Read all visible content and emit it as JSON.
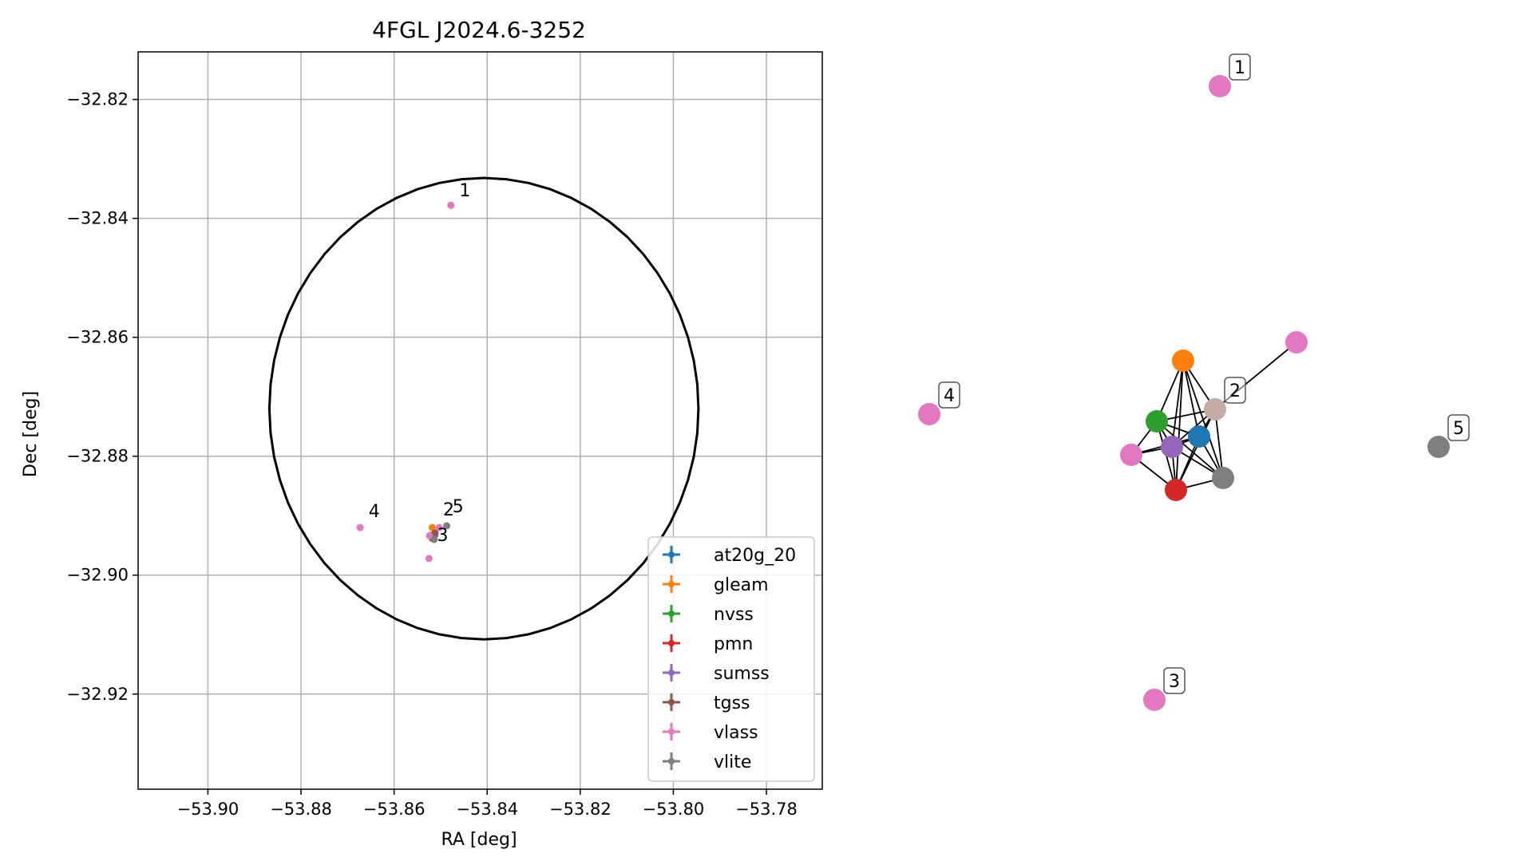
{
  "chart_data": [
    {
      "type": "scatter",
      "title": "4FGL J2024.6-3252",
      "xlabel": "RA [deg]",
      "ylabel": "Dec [deg]",
      "xlim": [
        -53.915,
        -53.768
      ],
      "ylim": [
        -32.936,
        -32.812
      ],
      "xticks": [
        -53.9,
        -53.88,
        -53.86,
        -53.84,
        -53.82,
        -53.8,
        -53.78
      ],
      "xtick_labels": [
        "−53.90",
        "−53.88",
        "−53.86",
        "−53.84",
        "−53.82",
        "−53.80",
        "−53.78"
      ],
      "yticks": [
        -32.82,
        -32.84,
        -32.86,
        -32.88,
        -32.9,
        -32.92
      ],
      "ytick_labels": [
        "−32.82",
        "−32.84",
        "−32.86",
        "−32.88",
        "−32.90",
        "−32.92"
      ],
      "grid": true,
      "legend_position": "lower-right",
      "ellipse": {
        "center_ra": -53.8407,
        "center_dec": -32.872,
        "half_width_ra": 0.0461,
        "half_height_dec": 0.0388
      },
      "series": [
        {
          "name": "at20g_20",
          "color": "#1f77b4",
          "points": [
            {
              "ra": -53.8513,
              "dec": -32.8933
            }
          ]
        },
        {
          "name": "gleam",
          "color": "#ff7f0e",
          "points": [
            {
              "ra": -53.8518,
              "dec": -32.892
            }
          ]
        },
        {
          "name": "nvss",
          "color": "#2ca02c",
          "points": [
            {
              "ra": -53.8522,
              "dec": -32.8933
            }
          ]
        },
        {
          "name": "pmn",
          "color": "#d62728",
          "points": [
            {
              "ra": -53.8518,
              "dec": -32.8938
            }
          ]
        },
        {
          "name": "sumss",
          "color": "#9467bd",
          "points": [
            {
              "ra": -53.852,
              "dec": -32.8934
            }
          ]
        },
        {
          "name": "tgss",
          "color": "#8c564b",
          "points": [
            {
              "ra": -53.8512,
              "dec": -32.8929
            }
          ]
        },
        {
          "name": "vlass",
          "color": "#e377c2",
          "points": [
            {
              "ra": -53.8478,
              "dec": -32.8378
            },
            {
              "ra": -53.8503,
              "dec": -32.892
            },
            {
              "ra": -53.8525,
              "dec": -32.8972
            },
            {
              "ra": -53.8673,
              "dec": -32.892
            },
            {
              "ra": -53.8524,
              "dec": -32.8934
            }
          ]
        },
        {
          "name": "vlite",
          "color": "#7f7f7f",
          "points": [
            {
              "ra": -53.8487,
              "dec": -32.8917
            },
            {
              "ra": -53.8514,
              "dec": -32.894
            }
          ]
        }
      ],
      "annotations": [
        {
          "label": "1",
          "ra": -53.847,
          "dec": -32.8368
        },
        {
          "label": "2",
          "ra": -53.8505,
          "dec": -32.8905
        },
        {
          "label": "3",
          "ra": -53.8518,
          "dec": -32.8948
        },
        {
          "label": "4",
          "ra": -53.8665,
          "dec": -32.8908
        },
        {
          "label": "5",
          "ra": -53.8485,
          "dec": -32.89
        }
      ]
    },
    {
      "type": "network-graph",
      "nodes": [
        {
          "id": "v1",
          "catalog": "vlass",
          "color": "#e377c2",
          "label": "1"
        },
        {
          "id": "v2",
          "catalog": "vlass",
          "color": "#e377c2",
          "label": ""
        },
        {
          "id": "v3",
          "catalog": "vlass",
          "color": "#e377c2",
          "label": "3"
        },
        {
          "id": "v4",
          "catalog": "vlass",
          "color": "#e377c2",
          "label": "4"
        },
        {
          "id": "v5",
          "catalog": "vlass",
          "color": "#e377c2",
          "label": ""
        },
        {
          "id": "g",
          "catalog": "gleam",
          "color": "#ff7f0e",
          "label": ""
        },
        {
          "id": "t",
          "catalog": "tgss",
          "color": "#c4aba5",
          "label": "2"
        },
        {
          "id": "n",
          "catalog": "nvss",
          "color": "#2ca02c",
          "label": ""
        },
        {
          "id": "a",
          "catalog": "at20g_20",
          "color": "#1f77b4",
          "label": ""
        },
        {
          "id": "s",
          "catalog": "sumss",
          "color": "#9467bd",
          "label": ""
        },
        {
          "id": "p",
          "catalog": "pmn",
          "color": "#d62728",
          "label": ""
        },
        {
          "id": "gr",
          "catalog": "vlite",
          "color": "#7f7f7f",
          "label": ""
        },
        {
          "id": "gr5",
          "catalog": "vlite",
          "color": "#7f7f7f",
          "label": "5"
        }
      ],
      "edges": [
        [
          "t",
          "v2"
        ],
        [
          "g",
          "n"
        ],
        [
          "g",
          "a"
        ],
        [
          "g",
          "s"
        ],
        [
          "g",
          "p"
        ],
        [
          "g",
          "t"
        ],
        [
          "g",
          "gr"
        ],
        [
          "t",
          "n"
        ],
        [
          "t",
          "a"
        ],
        [
          "t",
          "s"
        ],
        [
          "t",
          "p"
        ],
        [
          "t",
          "gr"
        ],
        [
          "n",
          "a"
        ],
        [
          "n",
          "s"
        ],
        [
          "n",
          "p"
        ],
        [
          "n",
          "v5"
        ],
        [
          "n",
          "gr"
        ],
        [
          "a",
          "s"
        ],
        [
          "a",
          "p"
        ],
        [
          "a",
          "gr"
        ],
        [
          "a",
          "v5"
        ],
        [
          "s",
          "p"
        ],
        [
          "s",
          "v5"
        ],
        [
          "s",
          "gr"
        ],
        [
          "p",
          "v5"
        ],
        [
          "p",
          "gr"
        ]
      ]
    }
  ]
}
